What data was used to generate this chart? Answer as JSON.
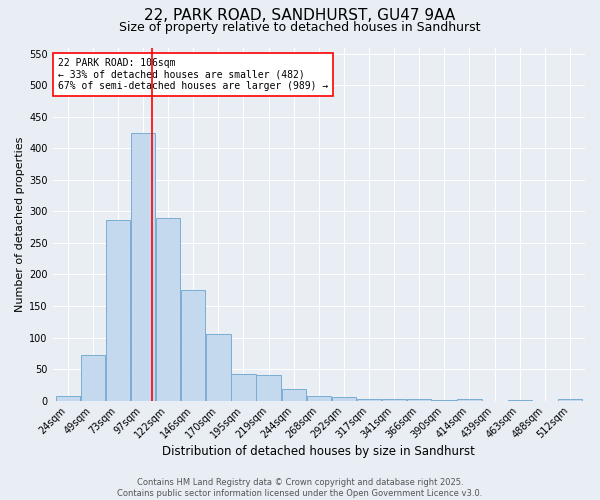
{
  "title1": "22, PARK ROAD, SANDHURST, GU47 9AA",
  "title2": "Size of property relative to detached houses in Sandhurst",
  "xlabel": "Distribution of detached houses by size in Sandhurst",
  "ylabel": "Number of detached properties",
  "categories": [
    "24sqm",
    "49sqm",
    "73sqm",
    "97sqm",
    "122sqm",
    "146sqm",
    "170sqm",
    "195sqm",
    "219sqm",
    "244sqm",
    "268sqm",
    "292sqm",
    "317sqm",
    "341sqm",
    "366sqm",
    "390sqm",
    "414sqm",
    "439sqm",
    "463sqm",
    "488sqm",
    "512sqm"
  ],
  "values": [
    7,
    72,
    287,
    425,
    290,
    175,
    105,
    42,
    40,
    18,
    8,
    5,
    3,
    2,
    3,
    1,
    3,
    0,
    1,
    0,
    3
  ],
  "bar_color": "#c5d9ee",
  "bar_edge_color": "#7aadd4",
  "annotation_text_line1": "22 PARK ROAD: 106sqm",
  "annotation_text_line2": "← 33% of detached houses are smaller (482)",
  "annotation_text_line3": "67% of semi-detached houses are larger (989) →",
  "annotation_box_facecolor": "white",
  "annotation_box_edgecolor": "red",
  "vline_color": "red",
  "ylim": [
    0,
    560
  ],
  "yticks": [
    0,
    50,
    100,
    150,
    200,
    250,
    300,
    350,
    400,
    450,
    500,
    550
  ],
  "title1_fontsize": 11,
  "title2_fontsize": 9,
  "xlabel_fontsize": 8.5,
  "ylabel_fontsize": 8,
  "tick_fontsize": 7,
  "annotation_fontsize": 7,
  "footer_fontsize": 6,
  "background_color": "#e8eef4",
  "footer_line1": "Contains HM Land Registry data © Crown copyright and database right 2025.",
  "footer_line2": "Contains public sector information licensed under the Open Government Licence v3.0.",
  "vline_bin_index": 3.37
}
